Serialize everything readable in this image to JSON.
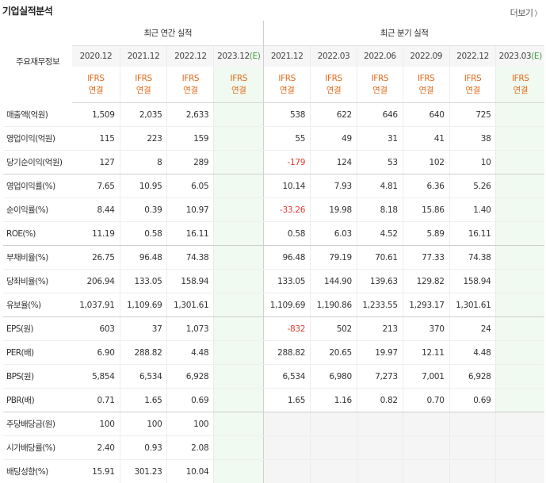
{
  "title": "기업실적분석",
  "more_label": "더보기",
  "label_header": "주요재무정보",
  "group_annual": "최근 연간 실적",
  "group_quarter": "최근 분기 실적",
  "annual_years": [
    "2020.12",
    "2021.12",
    "2022.12",
    "2023.12"
  ],
  "annual_est_mark": "(E)",
  "quarter_periods": [
    "2021.12",
    "2022.03",
    "2022.06",
    "2022.09",
    "2022.12",
    "2023.03"
  ],
  "quarter_est_mark": "(E)",
  "acc_line1": "IFRS",
  "acc_line2": "연결",
  "colors": {
    "ifrs": "#e06a1a",
    "negative": "#e0392f",
    "estimate_bg": "#f0faf0",
    "estimate_mark": "#3e9e3e"
  },
  "rows": [
    {
      "label": "매출액(억원)",
      "annual": [
        "1,509",
        "2,035",
        "2,633",
        ""
      ],
      "quarter": [
        "538",
        "622",
        "646",
        "640",
        "725",
        ""
      ]
    },
    {
      "label": "영업이익(억원)",
      "annual": [
        "115",
        "223",
        "159",
        ""
      ],
      "quarter": [
        "55",
        "49",
        "31",
        "41",
        "38",
        ""
      ]
    },
    {
      "label": "당기순이익(억원)",
      "annual": [
        "127",
        "8",
        "289",
        ""
      ],
      "quarter": [
        "-179",
        "124",
        "53",
        "102",
        "10",
        ""
      ]
    },
    {
      "label": "영업이익률(%)",
      "annual": [
        "7.65",
        "10.95",
        "6.05",
        ""
      ],
      "quarter": [
        "10.14",
        "7.93",
        "4.81",
        "6.36",
        "5.26",
        ""
      ]
    },
    {
      "label": "순이익률(%)",
      "annual": [
        "8.44",
        "0.39",
        "10.97",
        ""
      ],
      "quarter": [
        "-33.26",
        "19.98",
        "8.18",
        "15.86",
        "1.40",
        ""
      ]
    },
    {
      "label": "ROE(%)",
      "annual": [
        "11.19",
        "0.58",
        "16.11",
        ""
      ],
      "quarter": [
        "0.58",
        "6.03",
        "4.52",
        "5.89",
        "16.11",
        ""
      ]
    },
    {
      "label": "부채비율(%)",
      "annual": [
        "26.75",
        "96.48",
        "74.38",
        ""
      ],
      "quarter": [
        "96.48",
        "79.19",
        "70.61",
        "77.33",
        "74.38",
        ""
      ]
    },
    {
      "label": "당좌비율(%)",
      "annual": [
        "206.94",
        "133.05",
        "158.94",
        ""
      ],
      "quarter": [
        "133.05",
        "144.90",
        "139.63",
        "129.82",
        "158.94",
        ""
      ]
    },
    {
      "label": "유보율(%)",
      "annual": [
        "1,037.91",
        "1,109.69",
        "1,301.61",
        ""
      ],
      "quarter": [
        "1,109.69",
        "1,190.86",
        "1,233.55",
        "1,293.17",
        "1,301.61",
        ""
      ]
    },
    {
      "label": "EPS(원)",
      "annual": [
        "603",
        "37",
        "1,073",
        ""
      ],
      "quarter": [
        "-832",
        "502",
        "213",
        "370",
        "24",
        ""
      ]
    },
    {
      "label": "PER(배)",
      "annual": [
        "6.90",
        "288.82",
        "4.48",
        ""
      ],
      "quarter": [
        "288.82",
        "20.65",
        "19.97",
        "12.11",
        "4.48",
        ""
      ]
    },
    {
      "label": "BPS(원)",
      "annual": [
        "5,854",
        "6,534",
        "6,928",
        ""
      ],
      "quarter": [
        "6,534",
        "6,980",
        "7,273",
        "7,001",
        "6,928",
        ""
      ]
    },
    {
      "label": "PBR(배)",
      "annual": [
        "0.71",
        "1.65",
        "0.69",
        ""
      ],
      "quarter": [
        "1.65",
        "1.16",
        "0.82",
        "0.70",
        "0.69",
        ""
      ]
    },
    {
      "label": "주당배당금(원)",
      "annual": [
        "100",
        "100",
        "100",
        ""
      ],
      "quarter": []
    },
    {
      "label": "시가배당률(%)",
      "annual": [
        "2.40",
        "0.93",
        "2.08",
        ""
      ],
      "quarter": []
    },
    {
      "label": "배당성향(%)",
      "annual": [
        "15.91",
        "301.23",
        "10.04",
        ""
      ],
      "quarter": []
    }
  ]
}
